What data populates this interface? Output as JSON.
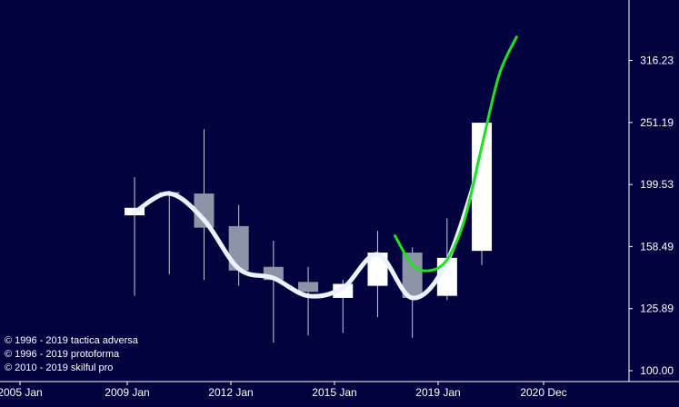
{
  "chart_data": {
    "type": "candlestick",
    "scale": "log",
    "ylim": [
      100.0,
      370.0
    ],
    "y_ticks": [
      "316.23",
      "251.19",
      "199.53",
      "158.49",
      "125.89",
      "100.00"
    ],
    "x_ticks": [
      "2005 Jan",
      "2009 Jan",
      "2012 Jan",
      "2015 Jan",
      "2019 Jan",
      "2020 Dec"
    ],
    "candles": [
      {
        "year": 2008.3,
        "open": 183,
        "close": 178,
        "high": 205,
        "low": 132,
        "color": "white"
      },
      {
        "year": 2009.3,
        "open": 194,
        "close": 193,
        "high": 195,
        "low": 143,
        "color": "gray"
      },
      {
        "year": 2010.3,
        "open": 193,
        "close": 170,
        "high": 245,
        "low": 140,
        "color": "gray"
      },
      {
        "year": 2011.3,
        "open": 171,
        "close": 145,
        "high": 185,
        "low": 137,
        "color": "gray"
      },
      {
        "year": 2012.3,
        "open": 147,
        "close": 140,
        "high": 162,
        "low": 111,
        "color": "gray"
      },
      {
        "year": 2013.3,
        "open": 139,
        "close": 134,
        "high": 147,
        "low": 114,
        "color": "gray"
      },
      {
        "year": 2014.3,
        "open": 138,
        "close": 131,
        "high": 140,
        "low": 115,
        "color": "white"
      },
      {
        "year": 2015.3,
        "open": 137,
        "close": 155,
        "high": 168,
        "low": 122,
        "color": "white"
      },
      {
        "year": 2016.3,
        "open": 155,
        "close": 131,
        "high": 158,
        "low": 113,
        "color": "gray"
      },
      {
        "year": 2017.3,
        "open": 132,
        "close": 152,
        "high": 176,
        "low": 130,
        "color": "white"
      },
      {
        "year": 2018.3,
        "open": 156,
        "close": 251,
        "high": 251,
        "low": 148,
        "color": "white"
      }
    ],
    "series": [
      {
        "color": "#eaf3ff",
        "x": [
          2008.3,
          2009.3,
          2010.3,
          2011.3,
          2012.3,
          2013.3,
          2014.3,
          2015.3,
          2016.3,
          2017.3,
          2018.3
        ],
        "values": [
          180,
          193,
          175,
          146,
          141,
          132,
          136,
          154,
          131,
          150,
          220
        ]
      },
      {
        "color": "#1ee21e",
        "x": [
          2015.8,
          2016.3,
          2016.8,
          2017.3,
          2017.8,
          2018.3,
          2018.8,
          2019.3
        ],
        "values": [
          165,
          148,
          145,
          151,
          175,
          230,
          300,
          345
        ]
      }
    ]
  },
  "copyright": [
    "© 1996 - 2019 tactica adversa",
    "© 1996 - 2019 protoforma",
    "© 2010 - 2019 skilful pro"
  ],
  "colors": {
    "background": "#02023f",
    "gray_candle": "#8c95a6",
    "white_candle": "#ffffff",
    "axis": "#ffffff"
  }
}
